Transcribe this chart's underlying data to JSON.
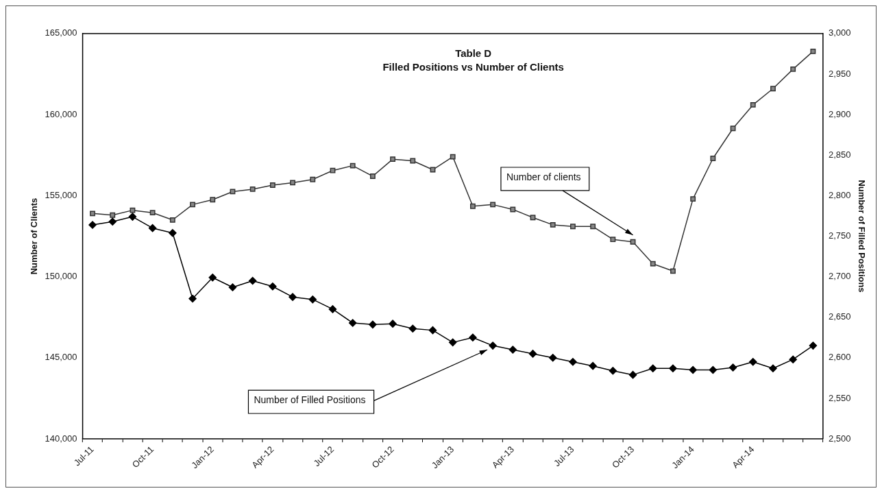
{
  "chart_data": {
    "type": "line",
    "title": "Table D",
    "subtitle": "Filled Positions vs Number of Clients",
    "ylabel": "Number of Clients",
    "y2label": "Number of Filled Positions",
    "categories": [
      "Jul-11",
      null,
      null,
      "Oct-11",
      null,
      null,
      "Jan-12",
      null,
      null,
      "Apr-12",
      null,
      null,
      "Jul-12",
      null,
      null,
      "Oct-12",
      null,
      null,
      "Jan-13",
      null,
      null,
      "Apr-13",
      null,
      null,
      "Jul-13",
      null,
      null,
      "Oct-13",
      null,
      null,
      "Jan-14",
      null,
      null,
      "Apr-14",
      null,
      null,
      null
    ],
    "series": [
      {
        "name": "Number of clients",
        "color": "#333333",
        "marker": "square",
        "values": [
          153900,
          153800,
          154100,
          153950,
          153500,
          154450,
          154750,
          155250,
          155400,
          155650,
          155800,
          156000,
          156550,
          156850,
          156200,
          157250,
          157150,
          156600,
          157400,
          154350,
          154450,
          154150,
          153650,
          153200,
          153100,
          153100,
          152300,
          152150,
          150800,
          150350,
          154800,
          157300,
          159150,
          160600,
          161600,
          162800,
          163900
        ]
      },
      {
        "name": "Number of Filled Positions",
        "color": "#000000",
        "marker": "diamond",
        "axis": "y2",
        "values": [
          2764,
          2768,
          2774,
          2760,
          2754,
          2673,
          2699,
          2687,
          2695,
          2688,
          2675,
          2672,
          2660,
          2643,
          2641,
          2642,
          2636,
          2634,
          2619,
          2625,
          2615,
          2610,
          2605,
          2600,
          2595,
          2590,
          2584,
          2579,
          2587,
          2587,
          2585,
          2585,
          2588,
          2595,
          2587,
          2598,
          2615
        ]
      }
    ],
    "ylim": [
      140000,
      165000
    ],
    "yticks": [
      {
        "value": 140000,
        "label": "140,000"
      },
      {
        "value": 145000,
        "label": "145,000"
      },
      {
        "value": 150000,
        "label": "150,000"
      },
      {
        "value": 155000,
        "label": "155,000"
      },
      {
        "value": 160000,
        "label": "160,000"
      },
      {
        "value": 165000,
        "label": "165,000"
      }
    ],
    "y2lim": [
      2500,
      3000
    ],
    "y2ticks": [
      {
        "value": 2500,
        "label": "2,500"
      },
      {
        "value": 2550,
        "label": "2,550"
      },
      {
        "value": 2600,
        "label": "2,600"
      },
      {
        "value": 2650,
        "label": "2,650"
      },
      {
        "value": 2700,
        "label": "2,700"
      },
      {
        "value": 2750,
        "label": "2,750"
      },
      {
        "value": 2800,
        "label": "2,800"
      },
      {
        "value": 2850,
        "label": "2,850"
      },
      {
        "value": 2900,
        "label": "2,900"
      },
      {
        "value": 2950,
        "label": "2,950"
      },
      {
        "value": 3000,
        "label": "3,000"
      }
    ],
    "grid": false,
    "legend": false,
    "line_style": "solid"
  }
}
